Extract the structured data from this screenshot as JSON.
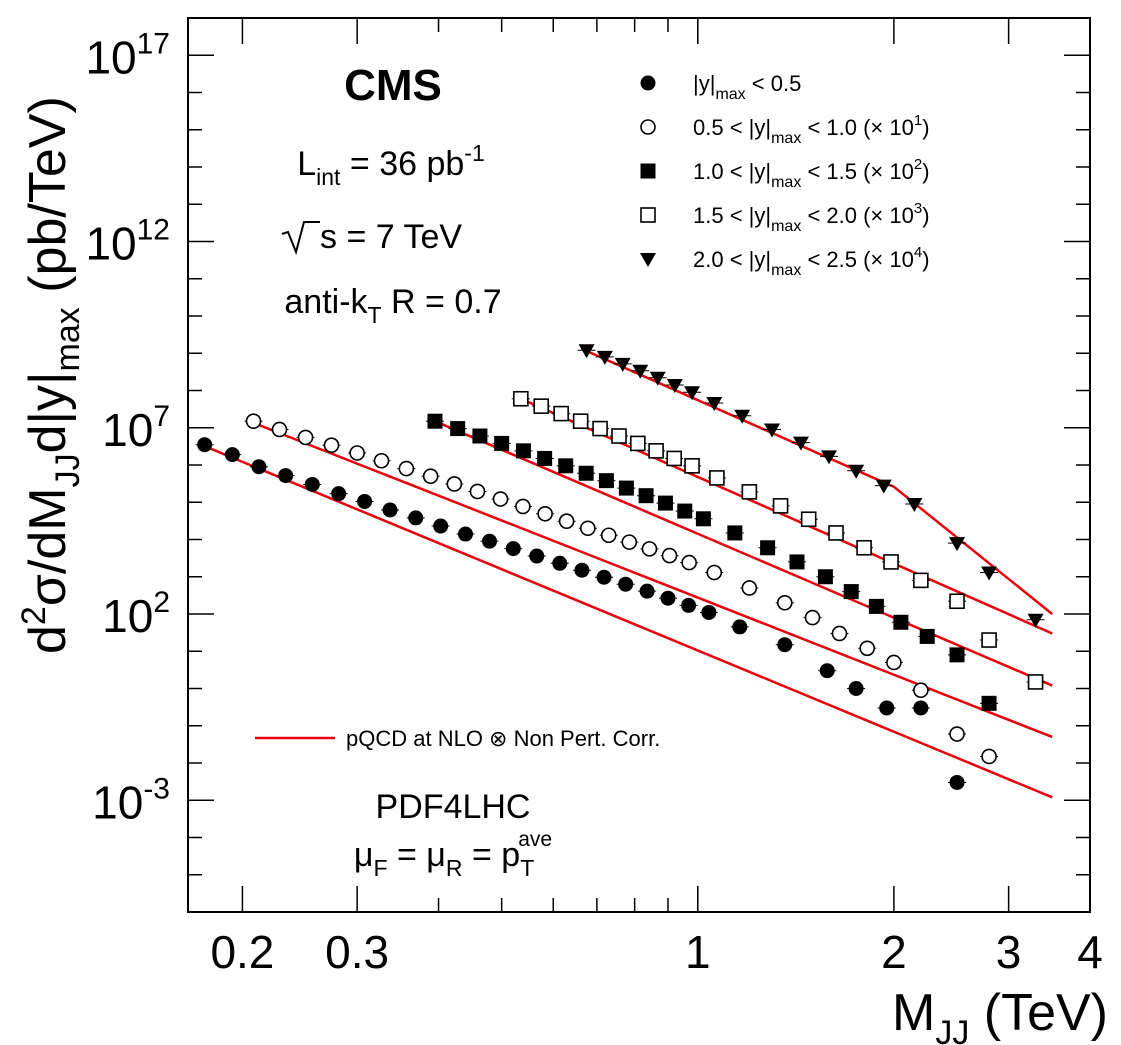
{
  "chart_data": {
    "type": "scatter",
    "xscale": "log",
    "yscale": "log",
    "xlim": [
      0.165,
      4.0
    ],
    "ylim": [
      1e-06,
      1e+18
    ],
    "xticks": [
      {
        "value": 0.2,
        "label": "0.2"
      },
      {
        "value": 0.3,
        "label": "0.3"
      },
      {
        "value": 1,
        "label": "1"
      },
      {
        "value": 2,
        "label": "2"
      },
      {
        "value": 3,
        "label": "3"
      },
      {
        "value": 4,
        "label": "4"
      }
    ],
    "yticks": [
      {
        "value": 0.001,
        "base": "10",
        "exp": "-3"
      },
      {
        "value": 100.0,
        "base": "10",
        "exp": "2"
      },
      {
        "value": 10000000.0,
        "base": "10",
        "exp": "7"
      },
      {
        "value": 1000000000000.0,
        "base": "10",
        "exp": "12"
      },
      {
        "value": 1e+17,
        "base": "10",
        "exp": "17"
      }
    ],
    "xlabel": {
      "main": "M",
      "sub": "JJ",
      "rest": " (TeV)"
    },
    "ylabel": {
      "d": "d",
      "sup2": "2",
      "a": "σ/dM",
      "subJJ": "JJ",
      "b": "d|y|",
      "submax": "max",
      "c": " (pb/TeV)"
    },
    "annotations": {
      "cms": "CMS",
      "lumi_main": "L",
      "lumi_sub": "int",
      "lumi_rest": " = 36 pb",
      "lumi_sup": "-1",
      "sqrt_s": "s = 7 TeV",
      "antikt_main": "anti-k",
      "antikt_sub": "T",
      "antikt_rest": " R = 0.7",
      "pdf": "PDF4LHC",
      "scale_mu1": "μ",
      "scale_sub1": "F",
      "scale_eq1": " = μ",
      "scale_sub2": "R",
      "scale_eq2": " = p",
      "scale_sub3": "T",
      "scale_sup3": "ave",
      "theory_legend": "pQCD at NLO ⊗ Non Pert. Corr."
    },
    "colors": {
      "theory": "#e8000b",
      "points": "#000000"
    },
    "series": [
      {
        "marker": "filled-circle",
        "legend": {
          "pre": "|y|",
          "sub": "max",
          "post": " < 0.5",
          "factor": ""
        },
        "x": [
          0.175,
          0.193,
          0.212,
          0.233,
          0.256,
          0.281,
          0.308,
          0.337,
          0.369,
          0.403,
          0.44,
          0.479,
          0.521,
          0.566,
          0.614,
          0.664,
          0.718,
          0.775,
          0.836,
          0.9,
          0.968,
          1.04,
          1.16,
          1.36,
          1.58,
          1.75,
          1.95,
          2.2,
          2.5
        ],
        "y": [
          3500000.0,
          1900000.0,
          900000.0,
          520000.0,
          300000.0,
          170000.0,
          105000.0,
          62000.0,
          38000.0,
          23000.0,
          14000.0,
          9000.0,
          5700.0,
          3600.0,
          2300.0,
          1500.0,
          970,
          630,
          410,
          265,
          170,
          110,
          45,
          15,
          3,
          1,
          0.3,
          0.3,
          0.003
        ],
        "theory": {
          "x": [
            0.175,
            3.5
          ],
          "y": [
            3200000.0,
            0.0012
          ]
        }
      },
      {
        "marker": "open-circle",
        "legend": {
          "pre": "0.5 < |y|",
          "sub": "max",
          "post": " < 1.0 (× 10",
          "factor": "1"
        },
        "x": [
          0.208,
          0.228,
          0.25,
          0.274,
          0.3,
          0.327,
          0.357,
          0.389,
          0.423,
          0.459,
          0.498,
          0.539,
          0.583,
          0.629,
          0.678,
          0.73,
          0.785,
          0.843,
          0.905,
          0.97,
          1.06,
          1.2,
          1.36,
          1.5,
          1.65,
          1.82,
          2.0,
          2.2,
          2.5,
          2.8
        ],
        "y": [
          15000000.0,
          9000000.0,
          5500000.0,
          3400000.0,
          2100000.0,
          1300000.0,
          800000.0,
          500000.0,
          310000.0,
          195000.0,
          122000.0,
          77000.0,
          49000.0,
          31000.0,
          20000.0,
          13000.0,
          8500.0,
          5600.0,
          3700.0,
          2400.0,
          1300.0,
          500,
          200,
          80,
          30,
          12,
          5,
          0.9,
          0.06,
          0.015
        ],
        "theory": {
          "x": [
            0.208,
            3.5
          ],
          "y": [
            13500000.0,
            0.05
          ]
        }
      },
      {
        "marker": "filled-square",
        "legend": {
          "pre": "1.0 < |y|",
          "sub": "max",
          "post": " < 1.5 (× 10",
          "factor": "2"
        },
        "x": [
          0.395,
          0.428,
          0.463,
          0.5,
          0.54,
          0.582,
          0.627,
          0.674,
          0.724,
          0.777,
          0.833,
          0.892,
          0.955,
          1.02,
          1.14,
          1.28,
          1.42,
          1.57,
          1.72,
          1.88,
          2.05,
          2.25,
          2.5,
          2.8
        ],
        "y": [
          15000000.0,
          9500000.0,
          6000000.0,
          3800000.0,
          2400000.0,
          1500000.0,
          950000.0,
          600000.0,
          380000.0,
          240000.0,
          150000.0,
          95000.0,
          58000.0,
          36000.0,
          15000.0,
          6000.0,
          2500.0,
          1000.0,
          400,
          160,
          60,
          25,
          8,
          0.4
        ],
        "theory": {
          "x": [
            0.395,
            3.5
          ],
          "y": [
            15000000.0,
            1.2
          ]
        }
      },
      {
        "marker": "open-square",
        "legend": {
          "pre": "1.5 < |y|",
          "sub": "max",
          "post": " < 2.0 (× 10",
          "factor": "3"
        },
        "x": [
          0.535,
          0.575,
          0.617,
          0.661,
          0.708,
          0.757,
          0.809,
          0.863,
          0.92,
          0.98,
          1.07,
          1.2,
          1.34,
          1.48,
          1.63,
          1.8,
          1.98,
          2.2,
          2.5,
          2.8,
          3.3
        ],
        "y": [
          60000000.0,
          38000000.0,
          24000000.0,
          15000000.0,
          9500000.0,
          6000000.0,
          3800000.0,
          2400000.0,
          1500000.0,
          950000.0,
          450000.0,
          190000.0,
          80000.0,
          35000.0,
          15000.0,
          6000.0,
          2500.0,
          800,
          220,
          20,
          1.5
        ],
        "theory": {
          "x": [
            0.535,
            3.5
          ],
          "y": [
            60000000.0,
            30
          ]
        }
      },
      {
        "marker": "filled-triangle",
        "legend": {
          "pre": "2.0 < |y|",
          "sub": "max",
          "post": " < 2.5 (× 10",
          "factor": "4"
        },
        "x": [
          0.675,
          0.72,
          0.767,
          0.816,
          0.868,
          0.922,
          0.98,
          1.06,
          1.17,
          1.3,
          1.44,
          1.59,
          1.75,
          1.93,
          2.15,
          2.5,
          2.8,
          3.3
        ],
        "y": [
          1200000000.0,
          800000000.0,
          520000000.0,
          340000000.0,
          220000000.0,
          140000000.0,
          90000000.0,
          46000000.0,
          21000000.0,
          9000000.0,
          4000000.0,
          1700000.0,
          700000.0,
          280000.0,
          90000.0,
          8000.0,
          1300.0,
          70
        ],
        "theory": {
          "x": [
            0.675,
            2.0,
            3.5
          ],
          "y": [
            1150000000.0,
            260000.0,
            100
          ]
        }
      }
    ]
  }
}
